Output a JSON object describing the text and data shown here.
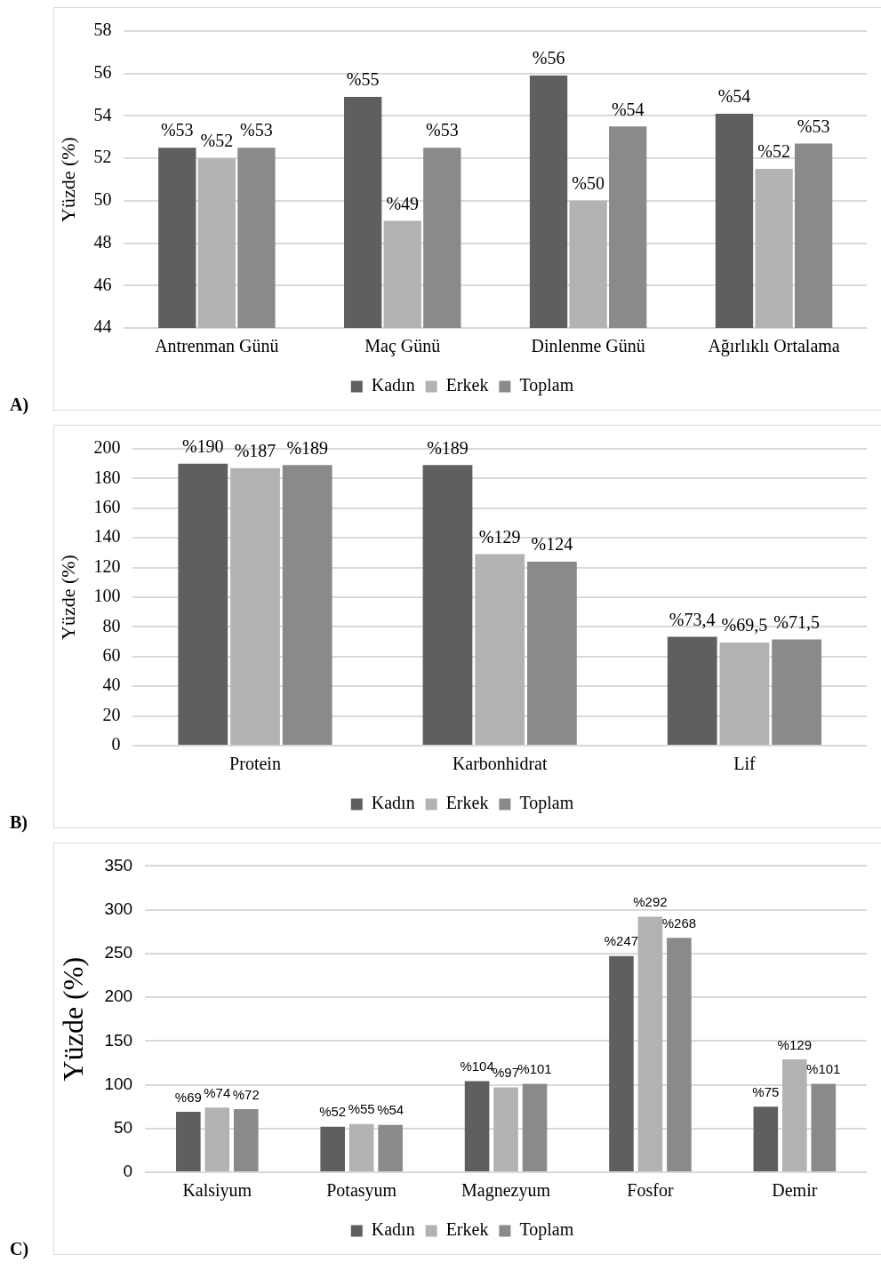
{
  "chart_data": [
    {
      "type": "bar",
      "categories": [
        "Antrenman Günü",
        "Maç Günü",
        "Dinlenme Günü",
        "Ağırlıklı Ortalama"
      ],
      "ylabel": "Yüzde (%)",
      "ylim": [
        44,
        58
      ],
      "yticks": [
        44,
        46,
        48,
        50,
        52,
        54,
        56,
        58
      ],
      "grid": "y",
      "legend": "bottom",
      "annotations": [
        "A)"
      ],
      "series": [
        {
          "name": "Kadın",
          "color": "#5f5f5f",
          "values": [
            52.5,
            54.9,
            55.9,
            54.1
          ],
          "value_labels": [
            "%53",
            "%55",
            "%56",
            "%54"
          ]
        },
        {
          "name": "Erkek",
          "color": "#b2b2b2",
          "values": [
            52.0,
            49.05,
            50.0,
            51.5
          ],
          "value_labels": [
            "%52",
            "%49",
            "%50",
            "%52"
          ]
        },
        {
          "name": "Toplam",
          "color": "#8a8a8a",
          "values": [
            52.5,
            52.5,
            53.5,
            52.7
          ],
          "value_labels": [
            "%53",
            "%53",
            "%54",
            "%53"
          ]
        }
      ]
    },
    {
      "type": "bar",
      "categories": [
        "Protein",
        "Karbonhidrat",
        "Lif"
      ],
      "ylabel": "Yüzde (%)",
      "ylim": [
        0,
        200
      ],
      "yticks": [
        0,
        20,
        40,
        60,
        80,
        100,
        120,
        140,
        160,
        180,
        200
      ],
      "grid": "y",
      "legend": "bottom",
      "annotations": [
        "B)"
      ],
      "series": [
        {
          "name": "Kadın",
          "color": "#5f5f5f",
          "values": [
            190,
            189,
            73.4
          ],
          "value_labels": [
            "%190",
            "%189",
            "%73,4"
          ]
        },
        {
          "name": "Erkek",
          "color": "#b2b2b2",
          "values": [
            187,
            129,
            69.5
          ],
          "value_labels": [
            "%187",
            "%129",
            "%69,5"
          ]
        },
        {
          "name": "Toplam",
          "color": "#8a8a8a",
          "values": [
            189,
            124,
            71.5
          ],
          "value_labels": [
            "%189",
            "%124",
            "%71,5"
          ]
        }
      ]
    },
    {
      "type": "bar",
      "categories": [
        "Kalsiyum",
        "Potasyum",
        "Magnezyum",
        "Fosfor",
        "Demir"
      ],
      "ylabel": "Yüzde (%)",
      "ylim": [
        0,
        350
      ],
      "yticks": [
        0,
        50,
        100,
        150,
        200,
        250,
        300,
        350
      ],
      "grid": "y",
      "legend": "bottom",
      "annotations": [
        "C)"
      ],
      "series": [
        {
          "name": "Kadın",
          "color": "#5f5f5f",
          "values": [
            69,
            52,
            104,
            247,
            75
          ],
          "value_labels": [
            "%69",
            "%52",
            "%104",
            "%247",
            "%75"
          ]
        },
        {
          "name": "Erkek",
          "color": "#b2b2b2",
          "values": [
            74,
            55,
            97,
            292,
            129
          ],
          "value_labels": [
            "%74",
            "%55",
            "%97",
            "%292",
            "%129"
          ]
        },
        {
          "name": "Toplam",
          "color": "#8a8a8a",
          "values": [
            72,
            54,
            101,
            268,
            101
          ],
          "value_labels": [
            "%72",
            "%54",
            "%101",
            "%268",
            "%101"
          ]
        }
      ]
    }
  ]
}
